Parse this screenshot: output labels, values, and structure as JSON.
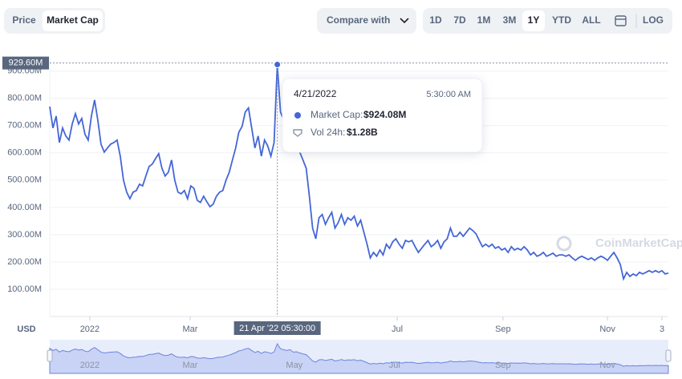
{
  "toolbar": {
    "tabs": [
      "Price",
      "Market Cap"
    ],
    "active_tab": 1,
    "compare": "Compare with",
    "ranges": [
      "1D",
      "7D",
      "1M",
      "3M",
      "1Y",
      "YTD",
      "ALL"
    ],
    "active_range": 4,
    "log": "LOG"
  },
  "chart_data": {
    "type": "line",
    "color": "#4466d6",
    "currency": "USD",
    "watermark": "CoinMarketCap",
    "ylim": [
      0,
      955
    ],
    "yticks": [
      {
        "value": 100,
        "label": "100.00M"
      },
      {
        "value": 200,
        "label": "200.00M"
      },
      {
        "value": 300,
        "label": "300.00M"
      },
      {
        "value": 400,
        "label": "400.00M"
      },
      {
        "value": 500,
        "label": "500.00M"
      },
      {
        "value": 600,
        "label": "600.00M"
      },
      {
        "value": 700,
        "label": "700.00M"
      },
      {
        "value": 800,
        "label": "800.00M"
      },
      {
        "value": 900,
        "label": "900.00M"
      }
    ],
    "xticks": [
      {
        "value": 12.5,
        "label": "2022"
      },
      {
        "value": 43.8,
        "label": "Mar"
      },
      {
        "value": 108.4,
        "label": "Jul"
      },
      {
        "value": 141.4,
        "label": "Sep"
      },
      {
        "value": 174,
        "label": "Nov"
      },
      {
        "value": 191,
        "label": "3"
      }
    ],
    "navigator_ticks": [
      {
        "value": 12.5,
        "label": "2022"
      },
      {
        "value": 43.8,
        "label": "Mar"
      },
      {
        "value": 76.3,
        "label": "May"
      },
      {
        "value": 107.6,
        "label": "Jul"
      },
      {
        "value": 141.4,
        "label": "Sep"
      },
      {
        "value": 174,
        "label": "Nov"
      }
    ],
    "series": [
      {
        "name": "Market Cap",
        "values": [
          770,
          691,
          735,
          638,
          691,
          662,
          647,
          706,
          744,
          706,
          726,
          668,
          647,
          735,
          794,
          720,
          632,
          603,
          618,
          632,
          638,
          647,
          588,
          500,
          456,
          432,
          456,
          462,
          485,
          479,
          515,
          550,
          559,
          579,
          597,
          544,
          515,
          529,
          574,
          500,
          456,
          450,
          462,
          432,
          479,
          470,
          426,
          418,
          441,
          421,
          403,
          412,
          441,
          456,
          462,
          500,
          529,
          574,
          618,
          676,
          697,
          750,
          765,
          691,
          618,
          662,
          588,
          647,
          626,
          588,
          638,
          924.08,
          750,
          720,
          691,
          720,
          632,
          647,
          603,
          574,
          544,
          441,
          324,
          285,
          362,
          374,
          338,
          362,
          382,
          324,
          344,
          374,
          338,
          362,
          353,
          368,
          332,
          353,
          309,
          265,
          215,
          235,
          221,
          244,
          226,
          265,
          250,
          274,
          285,
          265,
          250,
          279,
          274,
          279,
          256,
          235,
          250,
          265,
          279,
          256,
          265,
          279,
          250,
          274,
          285,
          324,
          294,
          294,
          309,
          294,
          309,
          324,
          315,
          303,
          279,
          256,
          265,
          256,
          265,
          250,
          256,
          244,
          250,
          235,
          256,
          244,
          250,
          244,
          256,
          244,
          226,
          235,
          221,
          226,
          235,
          221,
          226,
          232,
          221,
          226,
          226,
          221,
          226,
          215,
          206,
          215,
          221,
          215,
          209,
          215,
          206,
          215,
          221,
          215,
          206,
          221,
          235,
          215,
          191,
          138,
          162,
          147,
          156,
          150,
          162,
          156,
          162,
          168,
          162,
          168,
          162,
          168,
          156,
          159
        ]
      }
    ],
    "crosshair": {
      "index": 71,
      "x_label": "21 Apr '22 05:30:00",
      "y": 929.6,
      "y_label": "929.60M"
    },
    "tooltip": {
      "date": "4/21/2022",
      "time": "5:30:00 AM",
      "rows": [
        {
          "label": "Market Cap:",
          "value": "$924.08M"
        },
        {
          "label": "Vol 24h:",
          "value": "$1.28B"
        }
      ]
    }
  }
}
